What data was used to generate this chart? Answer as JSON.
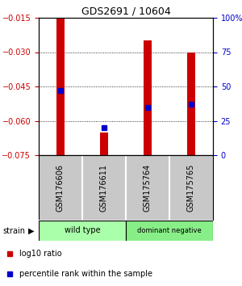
{
  "title": "GDS2691 / 10604",
  "samples": [
    "GSM176606",
    "GSM176611",
    "GSM175764",
    "GSM175765"
  ],
  "groups": [
    {
      "label": "wild type",
      "color": "#aaffaa",
      "samples": [
        0,
        1
      ]
    },
    {
      "label": "dominant negative",
      "color": "#88ee88",
      "samples": [
        2,
        3
      ]
    }
  ],
  "log10_ratio": [
    -0.015,
    -0.065,
    -0.025,
    -0.03
  ],
  "percentile_rank": [
    0.47,
    0.2,
    0.35,
    0.37
  ],
  "ylim_left": [
    -0.075,
    -0.015
  ],
  "yticks_left": [
    -0.075,
    -0.06,
    -0.045,
    -0.03,
    -0.015
  ],
  "ylim_right": [
    0,
    100
  ],
  "yticks_right": [
    0,
    25,
    50,
    75,
    100
  ],
  "bar_color": "#cc0000",
  "dot_color": "#0000cc",
  "bg_color": "#ffffff",
  "sample_bg_color": "#c8c8c8",
  "left_tick_color": "#cc0000",
  "right_tick_color": "#0000cc",
  "bar_width": 0.18,
  "legend_red_label": "log10 ratio",
  "legend_blue_label": "percentile rank within the sample"
}
